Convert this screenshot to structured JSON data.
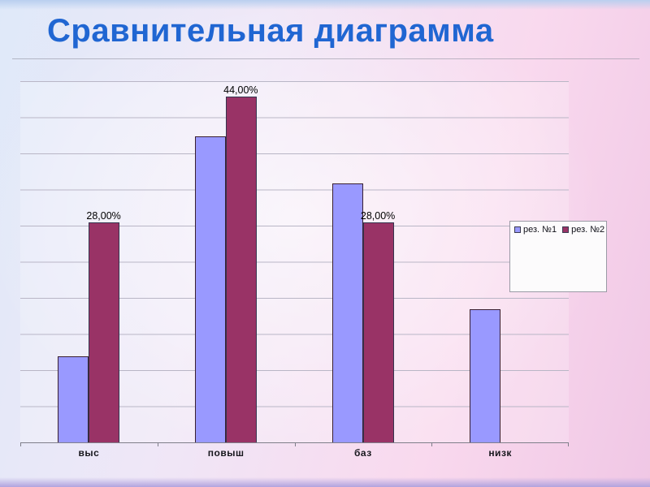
{
  "slide": {
    "title": "Сравнительная диаграмма"
  },
  "chart_data": {
    "type": "bar",
    "title": "",
    "xlabel": "",
    "ylabel": "",
    "categories": [
      "выс",
      "повыш",
      "баз",
      "низк"
    ],
    "series": [
      {
        "name": "рез. №1",
        "color": "#9999ff",
        "values": [
          11,
          39,
          33,
          17
        ]
      },
      {
        "name": "рез. №2",
        "color": "#993366",
        "values": [
          28,
          44,
          28,
          0
        ]
      }
    ],
    "value_labels_series2": [
      "28,00%",
      "44,00%",
      "28,00%",
      ""
    ],
    "ylim": [
      0,
      46
    ],
    "gridlines": true,
    "gridline_divisions": 10,
    "legend_position": "right",
    "colors": {
      "title_text": "#2066d2",
      "series1_fill": "#9999ff",
      "series2_fill": "#993366",
      "gridline": "#b9b6c6"
    }
  }
}
